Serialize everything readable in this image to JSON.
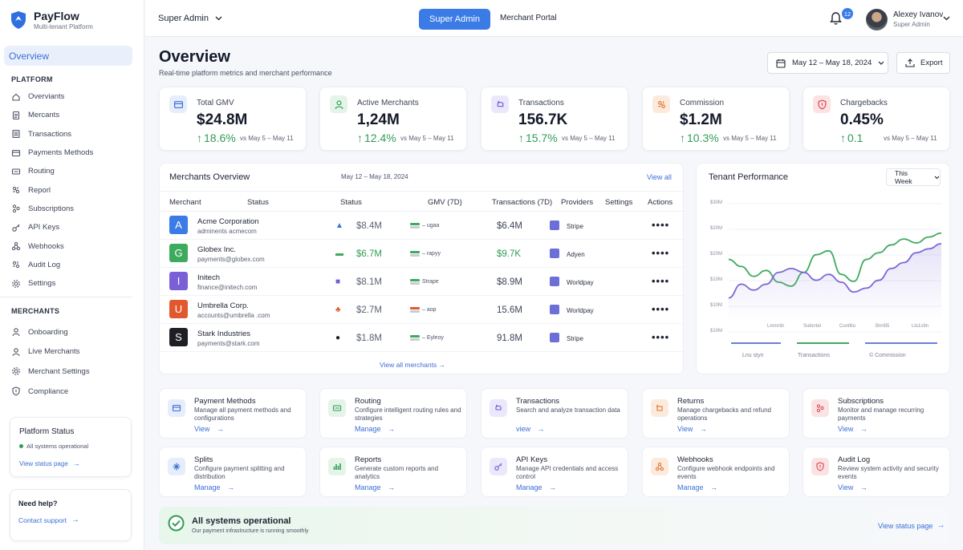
{
  "brand": {
    "name": "PayFlow",
    "tagline": "Multi-tenant Platform"
  },
  "sidebar": {
    "overview": "Overview",
    "platform_label": "PLATFORM",
    "platform_items": [
      {
        "label": "Overviants",
        "icon": "home-icon"
      },
      {
        "label": "Mercants",
        "icon": "document-icon"
      },
      {
        "label": "Transactions",
        "icon": "list-icon"
      },
      {
        "label": "Payments Methods",
        "icon": "card-icon"
      },
      {
        "label": "Routing",
        "icon": "routing-icon"
      },
      {
        "label": "Reporl",
        "icon": "report-icon"
      },
      {
        "label": "Subscriptions",
        "icon": "subscriptions-icon"
      },
      {
        "label": "API Keys",
        "icon": "key-icon"
      },
      {
        "label": "Webhooks",
        "icon": "webhook-icon"
      },
      {
        "label": "Audit Log",
        "icon": "audit-icon"
      },
      {
        "label": "Settings",
        "icon": "gear-icon"
      }
    ],
    "merchants_label": "MERCHANTS",
    "merchant_items": [
      {
        "label": "Onboarding",
        "icon": "user-icon"
      },
      {
        "label": "Live Merchants",
        "icon": "user-icon"
      },
      {
        "label": "Merchant Settings",
        "icon": "gear-icon"
      },
      {
        "label": "Compliance",
        "icon": "shield-icon"
      }
    ],
    "platform_status": {
      "title": "Platform Status",
      "status": "All systems operational",
      "link": "View status page"
    },
    "help": {
      "title": "Need help?",
      "link": "Contact support"
    }
  },
  "topbar": {
    "role": "Super Admin",
    "active_tab": "Super Admin",
    "tab2": "Merchant Portal",
    "notifications": "12",
    "user_name": "Alexey Ivanov",
    "user_role": "Super Admin"
  },
  "page": {
    "title": "Overview",
    "subtitle": "Real-time platform metrics and merchant performance",
    "date_range": "May 12 – May 18, 2024",
    "export": "Export"
  },
  "kpis": [
    {
      "label": "Total GMV",
      "value": "$24.8M",
      "change": "18.6%",
      "versus": "vs May 5 – May 11",
      "color": "#3a6fd8",
      "bg": "#e6edfb"
    },
    {
      "label": "Active Merchants",
      "value": "1,24M",
      "change": "12.4%",
      "versus": "vs May 5 – May 11",
      "color": "#2f9d55",
      "bg": "#e4f4e9"
    },
    {
      "label": "Transactions",
      "value": "156.7K",
      "change": "15.7%",
      "versus": "vs May 5 – May 11",
      "color": "#6c5fd6",
      "bg": "#ebe8fb"
    },
    {
      "label": "Commission",
      "value": "$1.2M",
      "change": "10.3%",
      "versus": "vs May 5 – May 11",
      "color": "#e0742e",
      "bg": "#fcebdd"
    },
    {
      "label": "Chargebacks",
      "value": "0.45%",
      "change": "0.1",
      "versus": "vs May 5 – May 11",
      "color": "#d9434b",
      "bg": "#fbe3e4"
    }
  ],
  "merchants_table": {
    "title": "Merchants Overview",
    "date": "May 12 – May 18, 2024",
    "view_all": "View all",
    "columns": [
      "Merchant",
      "Status",
      "Status",
      "GMV (7D)",
      "Transactions (7D)",
      "Providers",
      "Settings",
      "Actions"
    ],
    "rows": [
      {
        "initial": "A",
        "name": "Acme Corporation",
        "email": "adminents acmecom",
        "gmv": "$8.4M",
        "status_text": "– ugaa",
        "transactions": "$6.4M",
        "provider": "Stripe",
        "logo_color": "#3a7be6",
        "gmv_color": "#5b6274",
        "tx_color": "#3c4456"
      },
      {
        "initial": "G",
        "name": "Globex Inc.",
        "email": "payments@globex.com",
        "gmv": "$6.7M",
        "status_text": "– rapyy",
        "transactions": "$9.7K",
        "provider": "Adyen",
        "logo_color": "#3eaa5d",
        "gmv_color": "#2f9d55",
        "tx_color": "#2f9d55"
      },
      {
        "initial": "I",
        "name": "Initech",
        "email": "finance@initech.com",
        "gmv": "$8.1M",
        "status_text": "Strape",
        "transactions": "$8.9M",
        "provider": "Worldpay",
        "logo_color": "#7a5fd6",
        "gmv_color": "#5b6274",
        "tx_color": "#3c4456"
      },
      {
        "initial": "U",
        "name": "Umbrella Corp.",
        "email": "accounts@umbrella .com",
        "gmv": "$2.7M",
        "status_text": "– aop",
        "transactions": "15.6M",
        "provider": "Worldpay",
        "logo_color": "#e2582e",
        "gmv_color": "#5b6274",
        "tx_color": "#3c4456"
      },
      {
        "initial": "S",
        "name": "Stark Industries",
        "email": "payments@stark.com",
        "gmv": "$1.8M",
        "status_text": "– Eyleoy",
        "transactions": "91.8M",
        "provider": "Stripe",
        "logo_color": "#1e1f24",
        "gmv_color": "#5b6274",
        "tx_color": "#3c4456"
      }
    ],
    "view_more": "View all merchants →"
  },
  "tenant_performance": {
    "title": "Tenant Performance",
    "filter": "This Week",
    "legend": [
      "Lnu styn",
      "Transactions",
      "Commission"
    ]
  },
  "chart_data": {
    "type": "line",
    "title": "Tenant Performance",
    "y_ticks": [
      "$30M",
      "$20M",
      "$20M",
      "$10M",
      "$10M",
      "$10M"
    ],
    "ylim": [
      0,
      30
    ],
    "x_tick_labels": [
      "Lmmrlin",
      "Subcrtel",
      "Cuntllio",
      "Bnr8i5",
      "Llo1s9n"
    ],
    "series": [
      {
        "name": "Transactions",
        "color": "#3eaa5d",
        "values": [
          15.8,
          14.0,
          11.5,
          13.0,
          10.0,
          9.0,
          12.5,
          17.0,
          18.0,
          12.0,
          10.2,
          15.8,
          17.5,
          19.5,
          21.0,
          20.0,
          21.5,
          22.5
        ]
      },
      {
        "name": "Commission",
        "color": "#7a68d6",
        "values": [
          6.0,
          9.5,
          8.0,
          9.5,
          12.5,
          13.5,
          12.5,
          10.5,
          12.0,
          10.0,
          7.5,
          8.5,
          10.5,
          13.5,
          15.0,
          17.5,
          18.5,
          19.8
        ]
      }
    ]
  },
  "actions": [
    {
      "title": "Payment Methods",
      "desc": "Manage all payment methods and configurations",
      "link": "View",
      "icon": "card-icon",
      "color": "#3a6fd8",
      "bg": "#e6edfb"
    },
    {
      "title": "Routing",
      "desc": "Configure intelligent routing rules and strategies",
      "link": "Manage",
      "icon": "routing-icon",
      "color": "#2f9d55",
      "bg": "#e4f4e9"
    },
    {
      "title": "Transactions",
      "desc": "Search and analyze transaction data",
      "link": "view",
      "icon": "transactions-icon",
      "color": "#6c5fd6",
      "bg": "#ebe8fb"
    },
    {
      "title": "Returns",
      "desc": "Manage chargebacks and refund operations",
      "link": "View",
      "icon": "returns-icon",
      "color": "#e0742e",
      "bg": "#fcebdd"
    },
    {
      "title": "Subscriptions",
      "desc": "Monitor and manage recurring payments",
      "link": "View",
      "icon": "subscriptions-icon",
      "color": "#d9434b",
      "bg": "#fbe3e4"
    },
    {
      "title": "Splits",
      "desc": "Configure payment splitting and distribution",
      "link": "Manage",
      "icon": "splits-icon",
      "color": "#3a6fd8",
      "bg": "#e6edfb"
    },
    {
      "title": "Reports",
      "desc": "Generate custom reports and analytics",
      "link": "Manage",
      "icon": "reports-icon",
      "color": "#2f9d55",
      "bg": "#e4f4e9"
    },
    {
      "title": "API Keys",
      "desc": "Manage API credentials and access control",
      "link": "Manage",
      "icon": "key-icon",
      "color": "#6c5fd6",
      "bg": "#ebe8fb"
    },
    {
      "title": "Webhooks",
      "desc": "Configure webhook endpoints and events",
      "link": "Manage",
      "icon": "webhook-icon",
      "color": "#e0742e",
      "bg": "#fcebdd"
    },
    {
      "title": "Audit Log",
      "desc": "Review system activity and security events",
      "link": "View",
      "icon": "shield-icon",
      "color": "#d9434b",
      "bg": "#fbe3e4"
    }
  ],
  "status_banner": {
    "title": "All systems operational",
    "subtitle": "Our payment infrastructure is running smoothly",
    "link": "View status page"
  }
}
